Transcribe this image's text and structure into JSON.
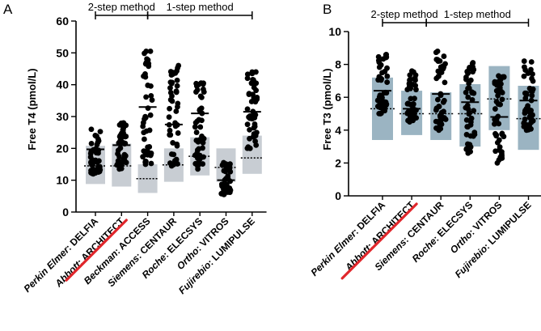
{
  "colors": {
    "range_fill": "#adbdc9",
    "range_fill_light": "#c8cdd3",
    "range_fill_blue": "#9bb4c2",
    "points": "#000000",
    "strike_line": "#e0262b"
  },
  "chart_data": [
    {
      "panel_label": "A",
      "type": "scatter",
      "ylabel": "Free T4 (pmol/L)",
      "ylim": [
        0,
        60
      ],
      "yticks": [
        "0",
        "10",
        "20",
        "30",
        "40",
        "50",
        "60"
      ],
      "method_groups": [
        {
          "label": "2-step method",
          "from_index": 0,
          "to_index": 2
        },
        {
          "label": "1-step method",
          "from_index": 2,
          "to_index": 6
        }
      ],
      "categories": [
        {
          "manufacturer": "Perkin Elmer",
          "assay": "DELFIA",
          "ref_range": [
            8.8,
            20.8
          ],
          "mean": 19.7,
          "ref_mid": 14.5,
          "crossed_out": false,
          "min": 12.0,
          "max": 26.0,
          "median": 17.5
        },
        {
          "manufacturer": "Abbott",
          "assay": "ARCHITECT",
          "ref_range": [
            8.0,
            21.5
          ],
          "mean": 21.0,
          "ref_mid": 14.5,
          "crossed_out": true,
          "min": 13.5,
          "max": 28.0,
          "median": 19.0
        },
        {
          "manufacturer": "Beckman",
          "assay": "ACCESS",
          "ref_range": [
            6.0,
            15.0
          ],
          "mean": 33.0,
          "ref_mid": 10.5,
          "crossed_out": false,
          "min": 15.0,
          "max": 50.5,
          "median": 31.0
        },
        {
          "manufacturer": "Siemens",
          "assay": "CENTAUR",
          "ref_range": [
            9.5,
            20.0
          ],
          "mean": 27.5,
          "ref_mid": 14.8,
          "crossed_out": false,
          "min": 14.5,
          "max": 46.0,
          "median": 26.0
        },
        {
          "manufacturer": "Roche",
          "assay": "ELECSYS",
          "ref_range": [
            11.5,
            23.5
          ],
          "mean": 31.0,
          "ref_mid": 17.5,
          "crossed_out": false,
          "min": 13.5,
          "max": 40.5,
          "median": 30.0
        },
        {
          "manufacturer": "Ortho",
          "assay": "VITROS",
          "ref_range": [
            9.5,
            20.0
          ],
          "mean": 10.0,
          "ref_mid": 14.0,
          "crossed_out": false,
          "min": 5.5,
          "max": 15.5,
          "median": 10.0
        },
        {
          "manufacturer": "Fujirebio",
          "assay": "LUMIPULSE",
          "ref_range": [
            12.0,
            24.0
          ],
          "mean": 31.5,
          "ref_mid": 17.0,
          "crossed_out": false,
          "min": 20.0,
          "max": 44.0,
          "median": 31.0
        }
      ]
    },
    {
      "panel_label": "B",
      "type": "scatter",
      "ylabel": "Free T3 (pmol/L)",
      "ylim": [
        0,
        10
      ],
      "yticks": [
        "0",
        "2",
        "4",
        "6",
        "8",
        "10"
      ],
      "method_groups": [
        {
          "label": "2-step method",
          "from_index": 0,
          "to_index": 1.5
        },
        {
          "label": "1-step method",
          "from_index": 1.5,
          "to_index": 5
        }
      ],
      "categories": [
        {
          "manufacturer": "Perkin Elmer",
          "assay": "DELFIA",
          "ref_range": [
            3.4,
            7.2
          ],
          "mean": 6.4,
          "ref_mid": 5.3,
          "crossed_out": false,
          "min": 5.0,
          "max": 8.6,
          "median": 6.4
        },
        {
          "manufacturer": "Abbott",
          "assay": "ARCHITECT",
          "ref_range": [
            3.7,
            6.4
          ],
          "mean": 5.3,
          "ref_mid": 5.0,
          "crossed_out": true,
          "min": 4.5,
          "max": 7.6,
          "median": 5.4
        },
        {
          "manufacturer": "Siemens",
          "assay": "CENTAUR",
          "ref_range": [
            3.4,
            6.3
          ],
          "mean": 6.2,
          "ref_mid": 5.0,
          "crossed_out": false,
          "min": 4.0,
          "max": 8.8,
          "median": 6.0
        },
        {
          "manufacturer": "Roche",
          "assay": "ELECSYS",
          "ref_range": [
            3.0,
            6.8
          ],
          "mean": 5.7,
          "ref_mid": 5.0,
          "crossed_out": false,
          "min": 2.6,
          "max": 8.1,
          "median": 5.7
        },
        {
          "manufacturer": "Ortho",
          "assay": "VITROS",
          "ref_range": [
            4.0,
            7.9
          ],
          "mean": 4.8,
          "ref_mid": 5.9,
          "crossed_out": false,
          "min": 2.0,
          "max": 7.3,
          "median": 4.8
        },
        {
          "manufacturer": "Fujirebio",
          "assay": "LUMIPULSE",
          "ref_range": [
            2.8,
            6.7
          ],
          "mean": 5.8,
          "ref_mid": 4.7,
          "crossed_out": false,
          "min": 4.0,
          "max": 8.2,
          "median": 5.7
        }
      ]
    }
  ]
}
